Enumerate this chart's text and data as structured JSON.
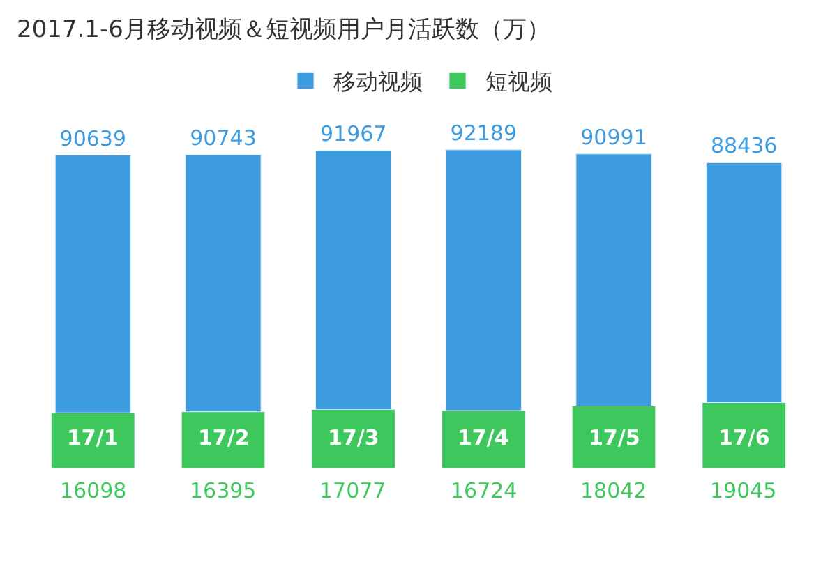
{
  "chart_data": {
    "type": "bar",
    "title": "2017.1-6月移动视频＆短视频用户月活跃数（万）",
    "categories": [
      "17/1",
      "17/2",
      "17/3",
      "17/4",
      "17/5",
      "17/6"
    ],
    "data_labels": true,
    "legend": "top",
    "series": [
      {
        "name": "移动视频",
        "color": "#3d9be0",
        "values": [
          90639,
          90743,
          91967,
          92189,
          90991,
          88436
        ]
      },
      {
        "name": "短视频",
        "color": "#3dc75c",
        "values": [
          16098,
          16395,
          17077,
          16724,
          18042,
          19045
        ]
      }
    ]
  }
}
